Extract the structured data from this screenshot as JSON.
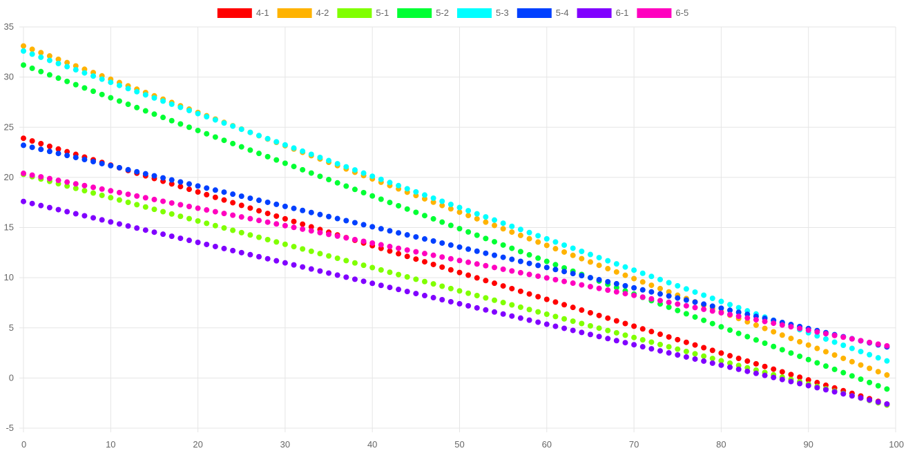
{
  "chart_data": {
    "type": "scatter",
    "title": "",
    "xlabel": "",
    "ylabel": "",
    "xlim": [
      0,
      100
    ],
    "ylim": [
      -5,
      35
    ],
    "x_ticks": [
      0,
      10,
      20,
      30,
      40,
      50,
      60,
      70,
      80,
      90,
      100
    ],
    "y_ticks": [
      -5,
      0,
      5,
      10,
      15,
      20,
      25,
      30,
      35
    ],
    "grid": true,
    "legend_position": "top",
    "x_points": {
      "start": 0,
      "end": 99,
      "step": 1
    },
    "series": [
      {
        "name": "4-1",
        "color": "#ff0000",
        "start": 23.9,
        "end": -2.6
      },
      {
        "name": "4-2",
        "color": "#ffb300",
        "start": 33.1,
        "end": 0.3
      },
      {
        "name": "5-1",
        "color": "#80ff00",
        "start": 20.3,
        "end": -2.7
      },
      {
        "name": "5-2",
        "color": "#00ff33",
        "start": 31.2,
        "end": -1.1
      },
      {
        "name": "5-3",
        "color": "#00ffff",
        "start": 32.6,
        "end": 1.7
      },
      {
        "name": "5-4",
        "color": "#0040ff",
        "start": 23.2,
        "end": 3.1
      },
      {
        "name": "6-1",
        "color": "#8000ff",
        "start": 17.6,
        "end": -2.6
      },
      {
        "name": "6-5",
        "color": "#ff00bf",
        "start": 20.4,
        "end": 3.2
      }
    ]
  }
}
